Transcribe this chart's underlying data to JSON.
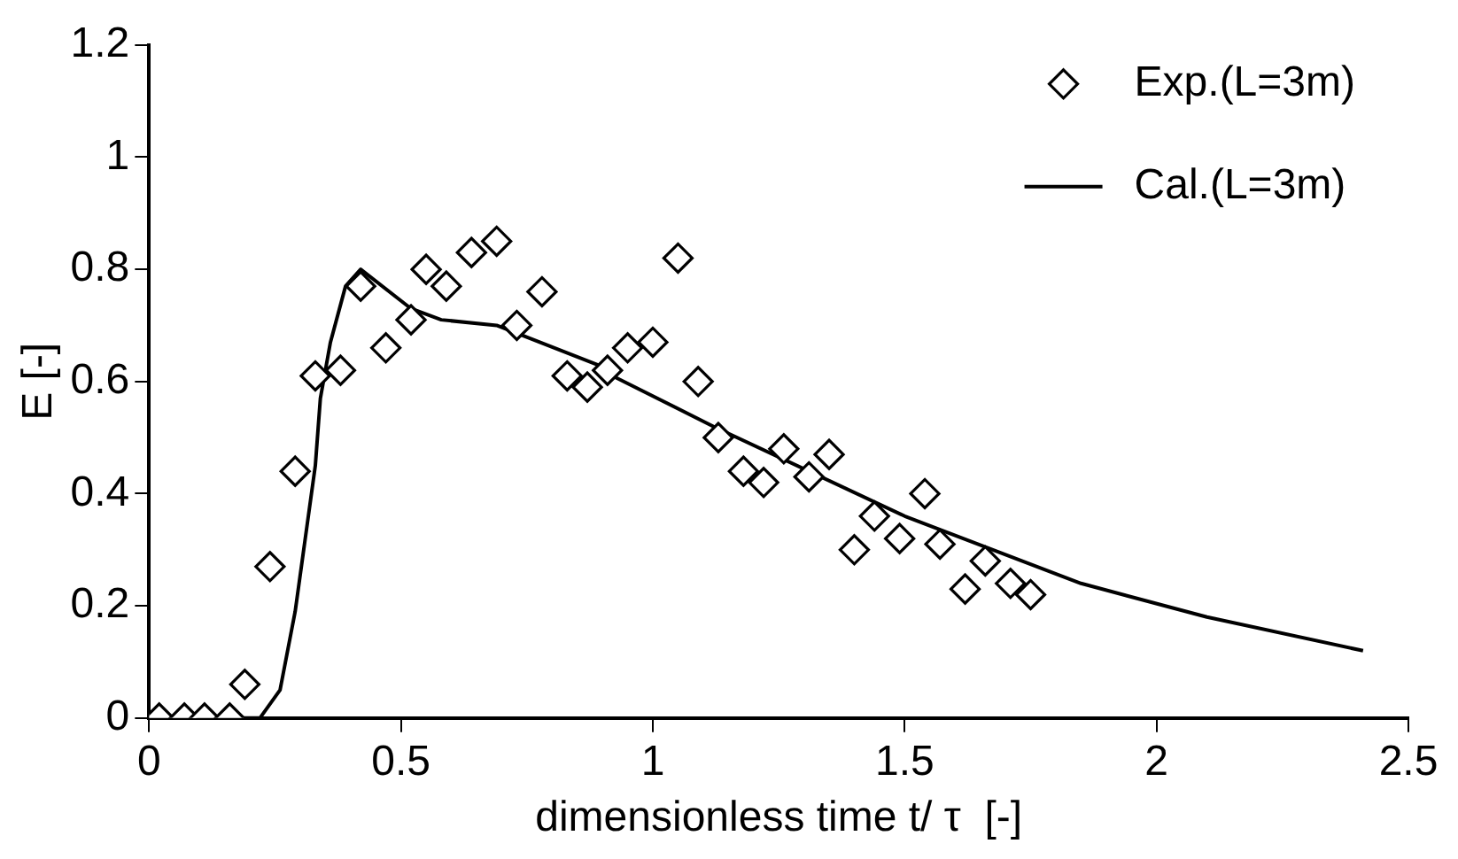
{
  "chart_data": {
    "type": "scatter",
    "xlabel": "dimensionless time t/ τ  [-]",
    "ylabel": "E [-]",
    "xlim": [
      0,
      2.5
    ],
    "xticks": [
      0,
      0.5,
      1,
      1.5,
      2,
      2.5
    ],
    "ylim": [
      0,
      1.2
    ],
    "yticks": [
      0,
      0.2,
      0.4,
      0.6,
      0.8,
      1,
      1.2
    ],
    "grid": false,
    "legend": "top right",
    "series": [
      {
        "name": "Exp.(L=3m)",
        "marker": "diamond",
        "color": "#000000",
        "x": [
          0.02,
          0.07,
          0.11,
          0.16,
          0.19,
          0.24,
          0.29,
          0.33,
          0.38,
          0.42,
          0.47,
          0.52,
          0.55,
          0.59,
          0.64,
          0.69,
          0.73,
          0.78,
          0.83,
          0.87,
          0.91,
          0.95,
          1.0,
          1.05,
          1.09,
          1.13,
          1.18,
          1.22,
          1.26,
          1.31,
          1.35,
          1.4,
          1.44,
          1.49,
          1.54,
          1.57,
          1.62,
          1.66,
          1.71,
          1.75
        ],
        "values": [
          0,
          0,
          0,
          0,
          0.06,
          0.27,
          0.44,
          0.61,
          0.62,
          0.77,
          0.66,
          0.71,
          0.8,
          0.77,
          0.83,
          0.85,
          0.7,
          0.76,
          0.61,
          0.59,
          0.62,
          0.66,
          0.67,
          0.82,
          0.6,
          0.5,
          0.44,
          0.42,
          0.48,
          0.43,
          0.47,
          0.3,
          0.36,
          0.32,
          0.4,
          0.31,
          0.23,
          0.28,
          0.24,
          0.22
        ]
      },
      {
        "name": "Cal.(L=3m)",
        "type": "line",
        "marker": "none",
        "line_style": "solid",
        "color": "#000000",
        "x": [
          0.02,
          0.22,
          0.26,
          0.29,
          0.33,
          0.34,
          0.36,
          0.39,
          0.42,
          0.52,
          0.58,
          0.69,
          0.89,
          0.92,
          1.12,
          1.5,
          1.85,
          2.1,
          2.41
        ],
        "values": [
          0,
          0,
          0.05,
          0.19,
          0.45,
          0.57,
          0.67,
          0.77,
          0.8,
          0.73,
          0.71,
          0.7,
          0.63,
          0.61,
          0.52,
          0.36,
          0.24,
          0.18,
          0.12
        ]
      }
    ]
  }
}
